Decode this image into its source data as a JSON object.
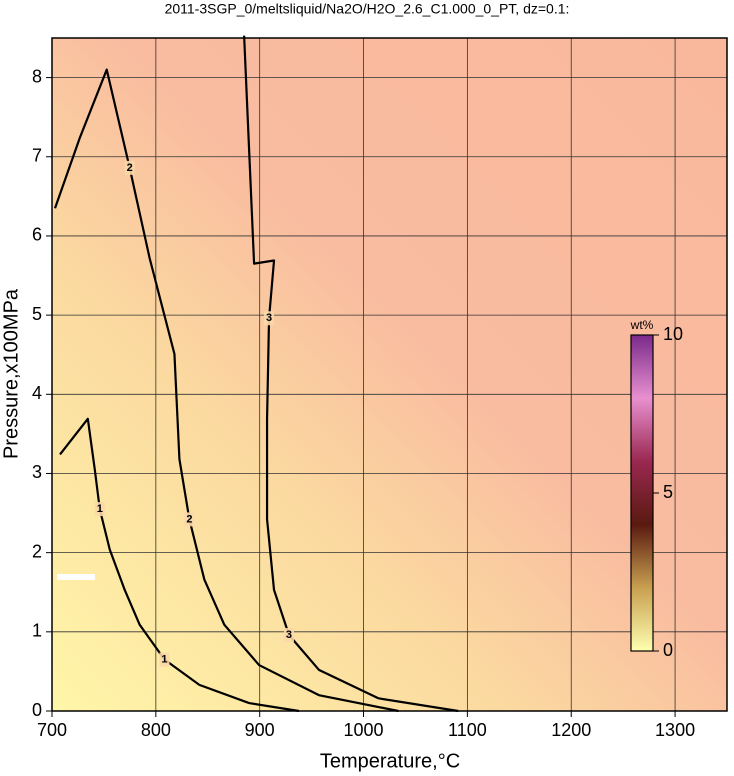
{
  "chart_data": {
    "type": "contour",
    "title": "2011-3SGP_0/meltsliquid/Na2O/H2O_2.6_C1.000_0_PT, dz=0.1:",
    "x_label": "Temperature,°C",
    "y_label": "Pressure,x100MPa",
    "xlim": [
      700,
      1350
    ],
    "ylim": [
      0,
      8.5
    ],
    "xticks": [
      700,
      800,
      900,
      1000,
      1100,
      1200,
      1300
    ],
    "yticks": [
      0,
      1,
      2,
      3,
      4,
      5,
      6,
      7,
      8
    ],
    "grid": true,
    "line_color": "#000000",
    "contours": [
      {
        "level": 1,
        "x": [
          707.7,
          734.5,
          741.2,
          746,
          755.6,
          770,
          784.4,
          808.3,
          841.9,
          889.8,
          937.8
        ],
        "y": [
          3.24,
          3.69,
          3.05,
          2.55,
          2.04,
          1.53,
          1.09,
          0.65,
          0.33,
          0.1,
          0
        ]
      },
      {
        "level": 2,
        "x": [
          702.9,
          726.8,
          752.7,
          774.8,
          794,
          817.9,
          822.7,
          832.3,
          846.7,
          865.9,
          899.4,
          957,
          1033.6
        ],
        "y": [
          6.35,
          7.24,
          8.1,
          6.86,
          5.72,
          4.51,
          3.18,
          2.42,
          1.66,
          1.09,
          0.58,
          0.2,
          0
        ]
      },
      {
        "level": 3,
        "x": [
          885,
          894.6,
          913.8,
          909,
          907.1,
          907.1,
          913.8,
          928.2,
          957,
          1014.5,
          1091.2
        ],
        "y": [
          8.53,
          5.65,
          5.69,
          4.96,
          3.69,
          2.42,
          1.53,
          0.96,
          0.52,
          0.16,
          0
        ]
      }
    ],
    "colorbar": {
      "label": "wt%",
      "clim": [
        0,
        10
      ],
      "cticks": [
        0,
        5,
        10
      ],
      "colormap": [
        "#ffffb0",
        "#c8a050",
        "#5a1a10",
        "#9a2850",
        "#e890d0",
        "#7a2a8a"
      ]
    }
  }
}
